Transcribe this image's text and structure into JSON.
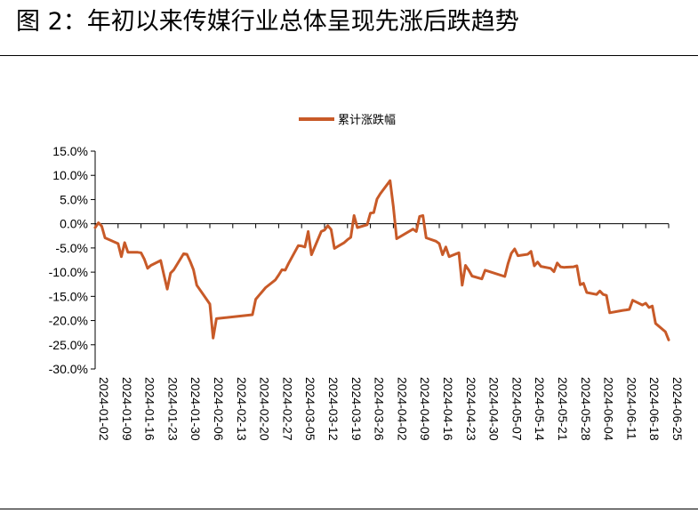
{
  "title": "图 2：年初以来传媒行业总体呈现先涨后跌趋势",
  "chart_data": {
    "type": "line",
    "title": "图 2：年初以来传媒行业总体呈现先涨后跌趋势",
    "xlabel": "",
    "ylabel": "",
    "ylim": [
      -30,
      15
    ],
    "yticks": [
      "15.0%",
      "10.0%",
      "5.0%",
      "0.0%",
      "-5.0%",
      "-10.0%",
      "-15.0%",
      "-20.0%",
      "-25.0%",
      "-30.0%"
    ],
    "xticks": [
      "2024-01-02",
      "2024-01-09",
      "2024-01-16",
      "2024-01-23",
      "2024-01-30",
      "2024-02-06",
      "2024-02-13",
      "2024-02-20",
      "2024-02-27",
      "2024-03-05",
      "2024-03-12",
      "2024-03-19",
      "2024-03-26",
      "2024-04-02",
      "2024-04-09",
      "2024-04-16",
      "2024-04-23",
      "2024-04-30",
      "2024-05-07",
      "2024-05-14",
      "2024-05-21",
      "2024-05-28",
      "2024-06-04",
      "2024-06-11",
      "2024-06-18",
      "2024-06-25"
    ],
    "grid": false,
    "legend": "top-center",
    "color": "#c85a28",
    "series": [
      {
        "name": "累计涨跌幅",
        "x": [
          "2024-01-02",
          "2024-01-03",
          "2024-01-04",
          "2024-01-05",
          "2024-01-08",
          "2024-01-09",
          "2024-01-10",
          "2024-01-11",
          "2024-01-12",
          "2024-01-15",
          "2024-01-16",
          "2024-01-17",
          "2024-01-18",
          "2024-01-19",
          "2024-01-22",
          "2024-01-23",
          "2024-01-24",
          "2024-01-25",
          "2024-01-26",
          "2024-01-29",
          "2024-01-30",
          "2024-01-31",
          "2024-02-01",
          "2024-02-02",
          "2024-02-05",
          "2024-02-06",
          "2024-02-07",
          "2024-02-08",
          "2024-02-19",
          "2024-02-20",
          "2024-02-21",
          "2024-02-22",
          "2024-02-23",
          "2024-02-26",
          "2024-02-27",
          "2024-02-28",
          "2024-02-29",
          "2024-03-01",
          "2024-03-04",
          "2024-03-05",
          "2024-03-06",
          "2024-03-07",
          "2024-03-08",
          "2024-03-11",
          "2024-03-12",
          "2024-03-13",
          "2024-03-14",
          "2024-03-15",
          "2024-03-18",
          "2024-03-19",
          "2024-03-20",
          "2024-03-21",
          "2024-03-22",
          "2024-03-25",
          "2024-03-26",
          "2024-03-27",
          "2024-03-28",
          "2024-03-29",
          "2024-04-01",
          "2024-04-02",
          "2024-04-03",
          "2024-04-08",
          "2024-04-09",
          "2024-04-10",
          "2024-04-11",
          "2024-04-12",
          "2024-04-15",
          "2024-04-16",
          "2024-04-17",
          "2024-04-18",
          "2024-04-19",
          "2024-04-22",
          "2024-04-23",
          "2024-04-24",
          "2024-04-25",
          "2024-04-26",
          "2024-04-29",
          "2024-04-30",
          "2024-05-06",
          "2024-05-07",
          "2024-05-08",
          "2024-05-09",
          "2024-05-10",
          "2024-05-13",
          "2024-05-14",
          "2024-05-15",
          "2024-05-16",
          "2024-05-17",
          "2024-05-20",
          "2024-05-21",
          "2024-05-22",
          "2024-05-23",
          "2024-05-24",
          "2024-05-27",
          "2024-05-28",
          "2024-05-29",
          "2024-05-30",
          "2024-05-31",
          "2024-06-03",
          "2024-06-04",
          "2024-06-05",
          "2024-06-06",
          "2024-06-07",
          "2024-06-11",
          "2024-06-12",
          "2024-06-13",
          "2024-06-14",
          "2024-06-17",
          "2024-06-18",
          "2024-06-19",
          "2024-06-20",
          "2024-06-21",
          "2024-06-24",
          "2024-06-25"
        ],
        "values": [
          -0.8,
          0.2,
          -0.5,
          -2.9,
          -3.8,
          -4.1,
          -6.8,
          -3.9,
          -5.9,
          -5.9,
          -6.0,
          -7.3,
          -9.2,
          -8.6,
          -7.6,
          -10.6,
          -13.5,
          -10.2,
          -9.5,
          -6.2,
          -6.3,
          -7.8,
          -9.5,
          -12.7,
          -15.6,
          -16.6,
          -23.6,
          -19.6,
          -18.8,
          -15.6,
          -14.8,
          -14.0,
          -13.2,
          -11.6,
          -10.6,
          -9.5,
          -9.6,
          -8.2,
          -4.5,
          -4.6,
          -4.8,
          -1.6,
          -6.4,
          -1.6,
          -1.3,
          -0.4,
          -1.2,
          -5.1,
          -3.9,
          -3.3,
          -2.8,
          1.7,
          -0.8,
          -0.2,
          2.2,
          2.3,
          5.1,
          6.2,
          8.9,
          3.5,
          -3.1,
          -1.1,
          -1.6,
          1.5,
          1.7,
          -2.9,
          -3.6,
          -4.1,
          -6.4,
          -4.8,
          -6.8,
          -6.0,
          -12.7,
          -8.6,
          -9.6,
          -10.8,
          -11.4,
          -9.6,
          -10.9,
          -8.2,
          -6.1,
          -5.2,
          -6.6,
          -6.3,
          -5.7,
          -8.7,
          -7.9,
          -8.8,
          -9.2,
          -9.9,
          -8.1,
          -8.9,
          -9.0,
          -8.9,
          -8.7,
          -12.6,
          -12.3,
          -14.2,
          -14.6,
          -13.9,
          -14.6,
          -14.8,
          -18.4,
          -17.9,
          -17.8,
          -17.7,
          -15.8,
          -16.8,
          -16.4,
          -17.3,
          -17.0,
          -20.6,
          -22.3,
          -24.0
        ]
      }
    ]
  }
}
